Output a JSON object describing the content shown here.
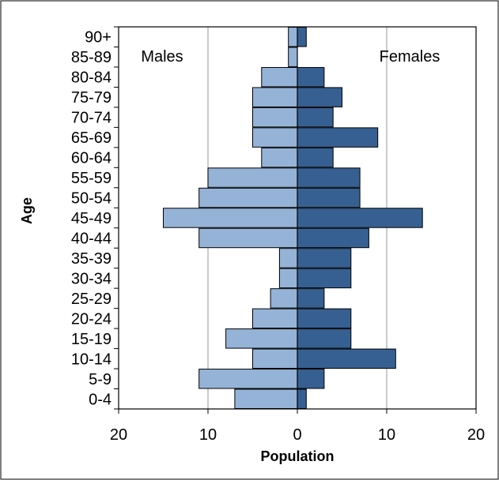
{
  "chart_data": {
    "type": "bar",
    "orientation": "horizontal",
    "title": "",
    "xlabel": "Population",
    "ylabel": "Age",
    "categories": [
      "0-4",
      "5-9",
      "10-14",
      "15-19",
      "20-24",
      "25-29",
      "30-34",
      "35-39",
      "40-44",
      "45-49",
      "50-54",
      "55-59",
      "60-64",
      "65-69",
      "70-74",
      "75-79",
      "80-84",
      "85-89",
      "90+"
    ],
    "series": [
      {
        "name": "Males",
        "values": [
          7,
          11,
          5,
          8,
          5,
          3,
          2,
          2,
          11,
          15,
          11,
          10,
          4,
          5,
          5,
          5,
          4,
          1,
          1
        ],
        "color": "#95b3d7"
      },
      {
        "name": "Females",
        "values": [
          1,
          3,
          11,
          6,
          6,
          3,
          6,
          6,
          8,
          14,
          7,
          7,
          4,
          9,
          4,
          5,
          3,
          0,
          1
        ],
        "color": "#376092"
      }
    ],
    "xlim": [
      -20,
      20
    ],
    "xticks": [
      -20,
      -10,
      0,
      10,
      20
    ],
    "xtick_labels": [
      "20",
      "10",
      "0",
      "10",
      "20"
    ],
    "grid": "vertical",
    "legend_placement": "inside-top"
  }
}
